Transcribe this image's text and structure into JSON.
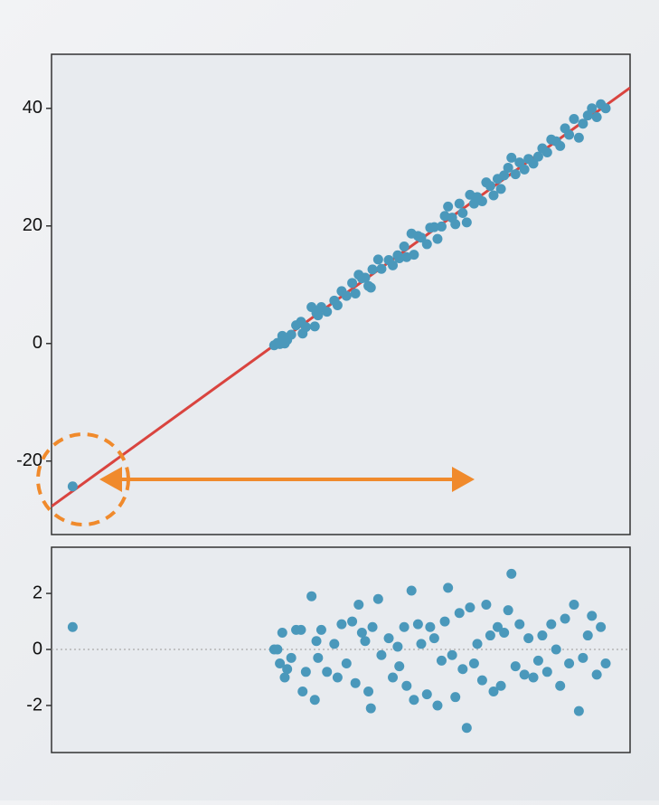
{
  "chart_data": [
    {
      "type": "scatter",
      "color": "#4a98bb",
      "xlim": [
        -27.7,
        43.5
      ],
      "ylim": [
        -32.5,
        49.2
      ],
      "yticks": [
        -20,
        0,
        20,
        40
      ],
      "fit_line": {
        "x": [
          -27.7,
          43.5
        ],
        "y": [
          -27.7,
          43.5
        ],
        "color": "#d9443f"
      },
      "x": [
        -25.1,
        -0.3,
        0.1,
        0.4,
        0.7,
        1.0,
        1.3,
        1.8,
        2.4,
        3.0,
        3.2,
        3.6,
        4.3,
        4.7,
        4.9,
        5.1,
        5.5,
        6.2,
        7.1,
        7.5,
        8.0,
        8.6,
        9.3,
        9.7,
        10.1,
        10.5,
        10.9,
        11.3,
        11.6,
        11.8,
        12.5,
        12.9,
        13.8,
        14.3,
        14.9,
        15.1,
        15.7,
        16.0,
        16.6,
        16.9,
        17.4,
        17.8,
        18.5,
        18.9,
        19.4,
        19.8,
        20.3,
        20.7,
        21.1,
        21.6,
        22.0,
        22.5,
        22.9,
        23.4,
        23.8,
        24.3,
        24.7,
        25.3,
        25.8,
        26.3,
        26.7,
        27.2,
        27.6,
        28.0,
        28.5,
        28.9,
        29.4,
        29.9,
        30.5,
        31.0,
        31.6,
        32.2,
        32.7,
        33.3,
        33.8,
        34.4,
        34.9,
        35.5,
        36.0,
        36.6,
        37.2,
        37.7,
        38.3,
        38.8,
        39.4,
        39.9,
        40.5
      ],
      "values": [
        -24.3,
        -0.3,
        0.1,
        -0.1,
        1.3,
        0.0,
        0.6,
        1.5,
        3.1,
        3.7,
        1.7,
        2.8,
        6.2,
        2.9,
        5.2,
        4.8,
        6.2,
        5.4,
        7.3,
        6.5,
        8.9,
        8.1,
        10.3,
        8.5,
        11.7,
        11.1,
        11.2,
        9.8,
        9.5,
        12.6,
        14.3,
        12.7,
        14.2,
        13.3,
        15.0,
        14.5,
        16.5,
        14.7,
        18.7,
        15.1,
        18.3,
        18.0,
        16.9,
        19.7,
        19.8,
        17.8,
        19.9,
        21.7,
        23.3,
        21.4,
        20.3,
        23.8,
        22.2,
        20.6,
        25.3,
        23.8,
        24.9,
        24.2,
        27.4,
        26.8,
        25.2,
        28.0,
        26.3,
        28.6,
        29.9,
        31.6,
        28.8,
        30.8,
        29.6,
        31.4,
        30.6,
        31.8,
        33.2,
        32.5,
        34.7,
        34.4,
        33.6,
        36.6,
        35.5,
        38.2,
        35.0,
        37.4,
        38.8,
        40.0,
        38.5,
        40.7,
        40.0
      ]
    },
    {
      "type": "scatter",
      "color": "#4a98bb",
      "xlim": [
        -27.7,
        43.5
      ],
      "ylim": [
        -3.68,
        3.65
      ],
      "yticks": [
        -2,
        0,
        2
      ],
      "hline": 0,
      "x": [
        -25.1,
        -0.3,
        0.1,
        0.4,
        0.7,
        1.0,
        1.3,
        1.8,
        2.4,
        3.0,
        3.2,
        3.6,
        4.3,
        4.7,
        4.9,
        5.1,
        5.5,
        6.2,
        7.1,
        7.5,
        8.0,
        8.6,
        9.3,
        9.7,
        10.1,
        10.5,
        10.9,
        11.3,
        11.6,
        11.8,
        12.5,
        12.9,
        13.8,
        14.3,
        14.9,
        15.1,
        15.7,
        16.0,
        16.6,
        16.9,
        17.4,
        17.8,
        18.5,
        18.9,
        19.4,
        19.8,
        20.3,
        20.7,
        21.1,
        21.6,
        22.0,
        22.5,
        22.9,
        23.4,
        23.8,
        24.3,
        24.7,
        25.3,
        25.8,
        26.3,
        26.7,
        27.2,
        27.6,
        28.0,
        28.5,
        28.9,
        29.4,
        29.9,
        30.5,
        31.0,
        31.6,
        32.2,
        32.7,
        33.3,
        33.8,
        34.4,
        34.9,
        35.5,
        36.0,
        36.6,
        37.2,
        37.7,
        38.3,
        38.8,
        39.4,
        39.9,
        40.5
      ],
      "values": [
        0.8,
        0,
        0,
        -0.5,
        0.6,
        -1,
        -0.7,
        -0.3,
        0.7,
        0.7,
        -1.5,
        -0.8,
        1.9,
        -1.8,
        0.3,
        -0.3,
        0.7,
        -0.8,
        0.2,
        -1,
        0.9,
        -0.5,
        1.0,
        -1.2,
        1.6,
        0.6,
        0.3,
        -1.5,
        -2.1,
        0.8,
        1.8,
        -0.2,
        0.4,
        -1.0,
        0.1,
        -0.6,
        0.8,
        -1.3,
        2.1,
        -1.8,
        0.9,
        0.2,
        -1.6,
        0.8,
        0.4,
        -2.0,
        -0.4,
        1.0,
        2.2,
        -0.2,
        -1.7,
        1.3,
        -0.7,
        -2.8,
        1.5,
        -0.5,
        0.2,
        -1.1,
        1.6,
        0.5,
        -1.5,
        0.8,
        -1.3,
        0.6,
        1.4,
        2.7,
        -0.6,
        0.9,
        -0.9,
        0.4,
        -1.0,
        -0.4,
        0.5,
        -0.8,
        0.9,
        0,
        -1.3,
        1.1,
        -0.5,
        1.6,
        -2.2,
        -0.3,
        0.5,
        1.2,
        -0.9,
        0.8,
        -0.5
      ]
    }
  ]
}
